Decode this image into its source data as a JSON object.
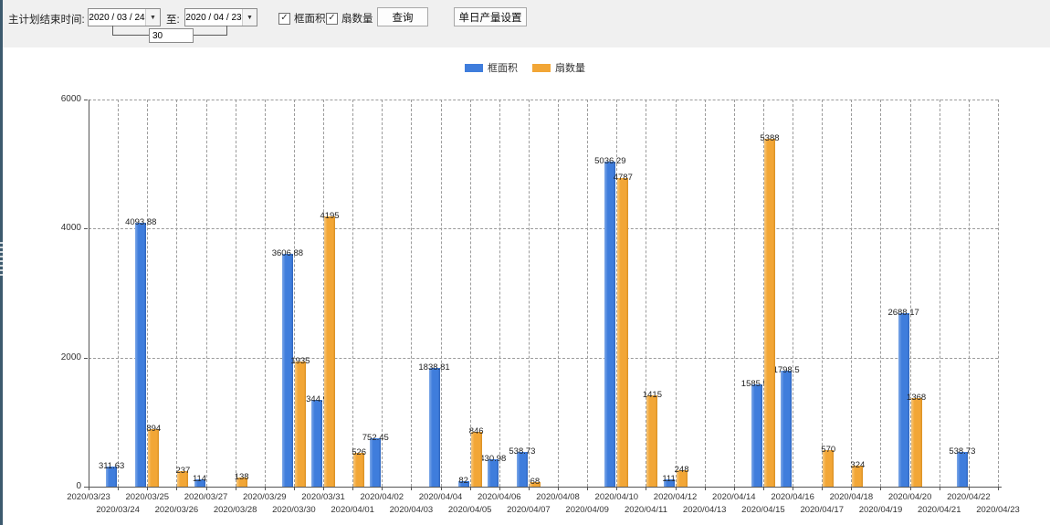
{
  "toolbar": {
    "label_main": "主计划结束时间:",
    "date_from": "2020 / 03 / 24",
    "to_label": "至:",
    "date_to": "2020 / 04 / 23",
    "days_value": "30",
    "checkboxes": [
      {
        "label": "框面积",
        "checked": true
      },
      {
        "label": "扇数量",
        "checked": true
      }
    ],
    "query_button": "查询",
    "daily_output_button": "单日产量设置"
  },
  "chart_data": {
    "type": "bar",
    "title": "",
    "xlabel": "",
    "ylabel": "",
    "ylim": [
      0,
      6000
    ],
    "yticks": [
      0,
      2000,
      4000,
      6000
    ],
    "grid": true,
    "legend_position": "top",
    "categories": [
      "2020/03/23",
      "2020/03/24",
      "2020/03/25",
      "2020/03/26",
      "2020/03/27",
      "2020/03/28",
      "2020/03/29",
      "2020/03/30",
      "2020/03/31",
      "2020/04/01",
      "2020/04/02",
      "2020/04/03",
      "2020/04/04",
      "2020/04/05",
      "2020/04/06",
      "2020/04/07",
      "2020/04/08",
      "2020/04/09",
      "2020/04/10",
      "2020/04/11",
      "2020/04/12",
      "2020/04/13",
      "2020/04/14",
      "2020/04/15",
      "2020/04/16",
      "2020/04/17",
      "2020/04/18",
      "2020/04/19",
      "2020/04/20",
      "2020/04/21",
      "2020/04/22",
      "2020/04/23"
    ],
    "series": [
      {
        "name": "框面积",
        "color": "#3F7DDC",
        "values": [
          null,
          311.63,
          4093.88,
          null,
          114,
          null,
          null,
          3606.88,
          1344.95,
          null,
          752.45,
          null,
          1838.81,
          82,
          430.98,
          538.73,
          null,
          null,
          5036.29,
          null,
          111,
          null,
          null,
          1585.96,
          1798.5,
          null,
          null,
          null,
          2688.17,
          null,
          538.73,
          null
        ]
      },
      {
        "name": "扇数量",
        "color": "#F2A636",
        "values": [
          null,
          null,
          894,
          237,
          null,
          138,
          null,
          1935,
          4195,
          526,
          null,
          null,
          null,
          846,
          null,
          68,
          null,
          null,
          4787,
          1415,
          248,
          null,
          null,
          5388,
          null,
          570,
          324,
          null,
          1368,
          null,
          null,
          null
        ]
      }
    ]
  }
}
